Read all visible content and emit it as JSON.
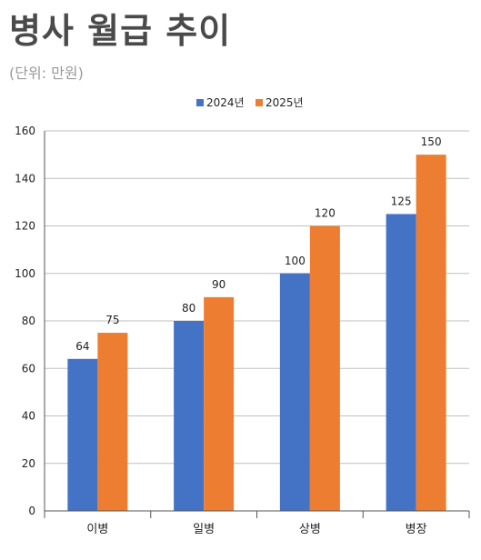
{
  "header": {
    "title": "병사 월급 추이",
    "subtitle": "(단위: 만원)"
  },
  "chart_data": {
    "type": "bar",
    "categories": [
      "이병",
      "일병",
      "상병",
      "병장"
    ],
    "series": [
      {
        "name": "2024년",
        "values": [
          64,
          80,
          100,
          125
        ],
        "color": "#4472C4"
      },
      {
        "name": "2025년",
        "values": [
          75,
          90,
          120,
          150
        ],
        "color": "#ED7D31"
      }
    ],
    "ylim": [
      0,
      160
    ],
    "yticks": [
      0,
      20,
      40,
      60,
      80,
      100,
      120,
      140,
      160
    ],
    "grid": true,
    "legend": "top-center",
    "data_labels": true
  }
}
